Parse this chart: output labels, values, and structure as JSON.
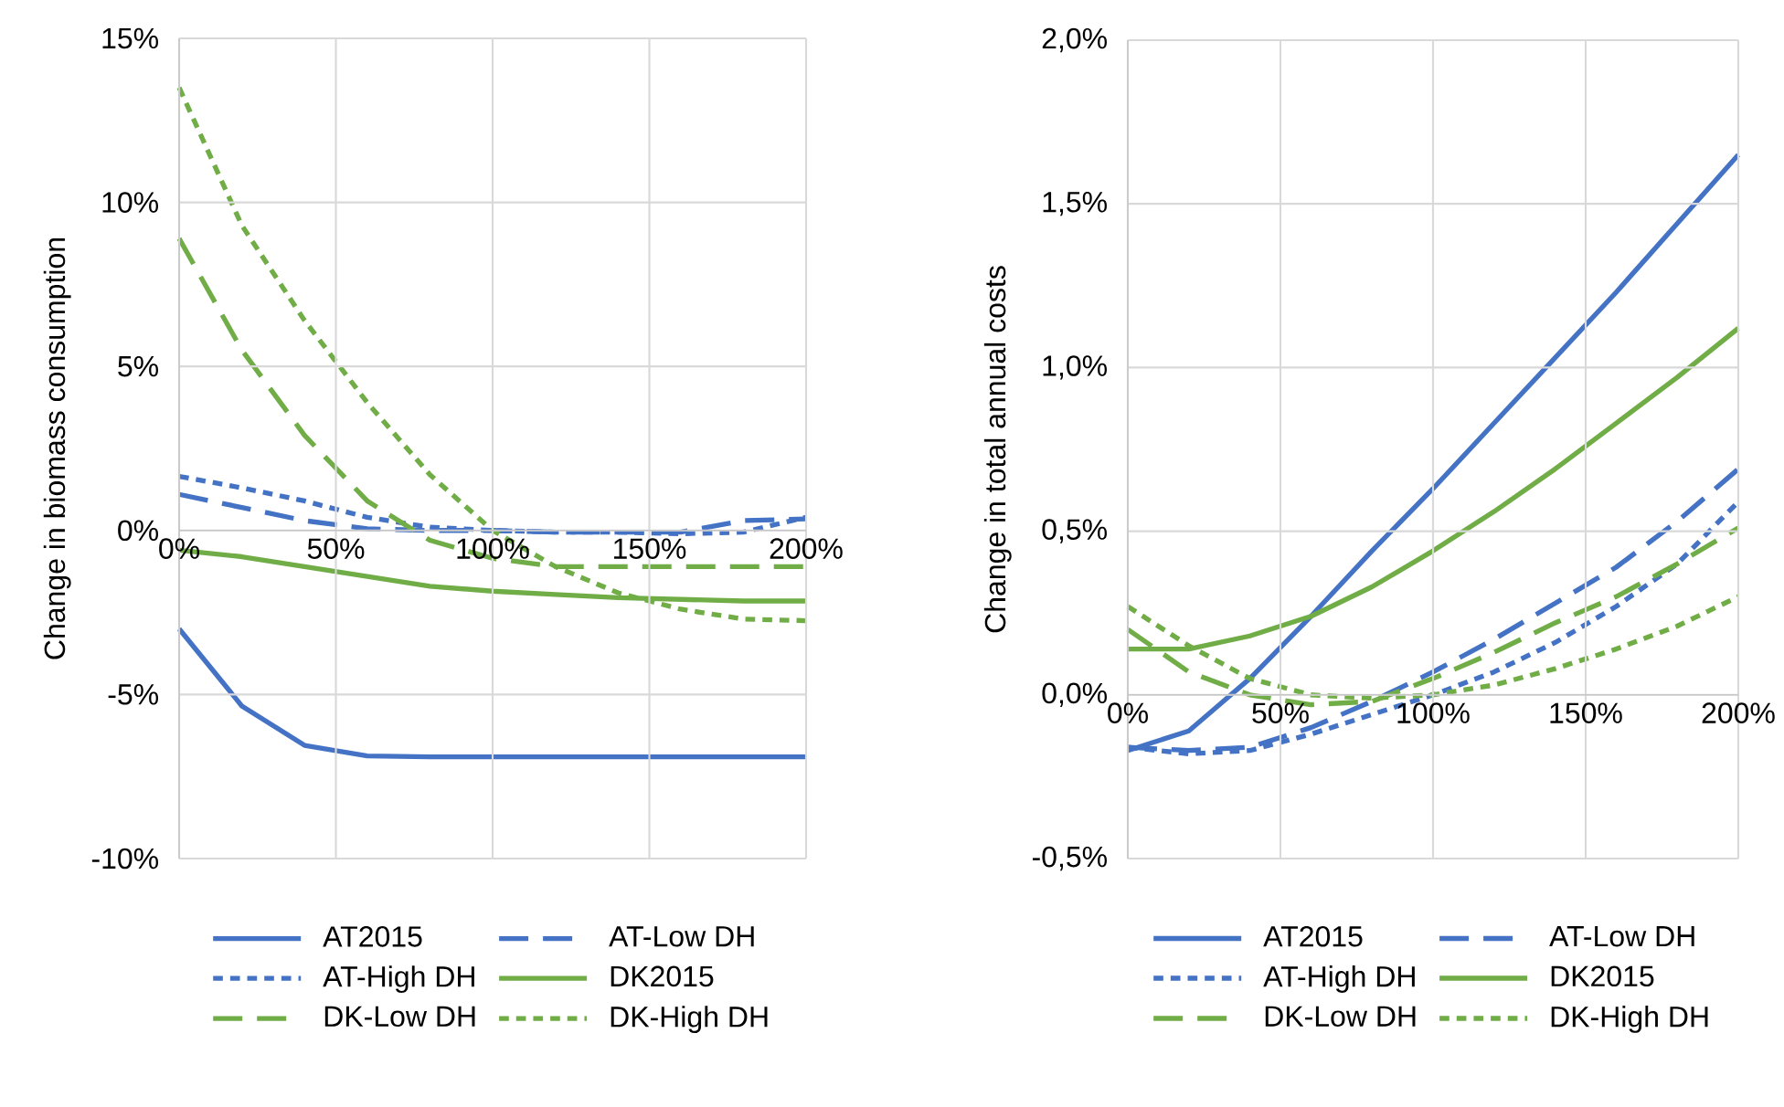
{
  "chart_data": [
    {
      "type": "line",
      "ylabel": "Change in biomass consumption",
      "x": [
        0,
        20,
        40,
        60,
        80,
        100,
        120,
        140,
        160,
        180,
        200
      ],
      "xlim": [
        0,
        200
      ],
      "xticks": [
        {
          "value": 0,
          "label": "0%"
        },
        {
          "value": 50,
          "label": "50%"
        },
        {
          "value": 100,
          "label": "100%"
        },
        {
          "value": 150,
          "label": "150%"
        },
        {
          "value": 200,
          "label": "200%"
        }
      ],
      "ylim": [
        -10,
        15
      ],
      "yticks": [
        {
          "value": -10,
          "label": "-10%"
        },
        {
          "value": -5,
          "label": "-5%"
        },
        {
          "value": 0,
          "label": "0%"
        },
        {
          "value": 5,
          "label": "5%"
        },
        {
          "value": 10,
          "label": "10%"
        },
        {
          "value": 15,
          "label": "15%"
        }
      ],
      "grid": true,
      "legend": "bottom",
      "series": [
        {
          "name": "AT2015",
          "color": "#4472c4",
          "line_style": "solid",
          "values": [
            -3.0,
            -5.35,
            -6.55,
            -6.87,
            -6.9,
            -6.9,
            -6.9,
            -6.9,
            -6.9,
            -6.9,
            -6.9
          ]
        },
        {
          "name": "AT-Low DH",
          "color": "#4472c4",
          "line_style": "dashed",
          "values": [
            1.1,
            0.7,
            0.3,
            0.05,
            0.0,
            0.0,
            -0.05,
            -0.05,
            -0.05,
            0.3,
            0.35
          ]
        },
        {
          "name": "AT-High DH",
          "color": "#4472c4",
          "line_style": "dotted",
          "values": [
            1.65,
            1.3,
            0.9,
            0.4,
            0.1,
            0.0,
            -0.05,
            -0.05,
            -0.1,
            -0.05,
            0.4
          ]
        },
        {
          "name": "DK2015",
          "color": "#70ad47",
          "line_style": "solid",
          "values": [
            -0.6,
            -0.8,
            -1.1,
            -1.4,
            -1.7,
            -1.85,
            -1.95,
            -2.05,
            -2.1,
            -2.15,
            -2.15
          ]
        },
        {
          "name": "DK-Low DH",
          "color": "#70ad47",
          "line_style": "dashed",
          "values": [
            8.9,
            5.5,
            2.9,
            0.9,
            -0.3,
            -0.85,
            -1.1,
            -1.1,
            -1.1,
            -1.1,
            -1.1
          ]
        },
        {
          "name": "DK-High DH",
          "color": "#70ad47",
          "line_style": "dotted",
          "values": [
            13.5,
            9.3,
            6.4,
            3.9,
            1.7,
            0.0,
            -1.1,
            -1.9,
            -2.4,
            -2.7,
            -2.75
          ]
        }
      ]
    },
    {
      "type": "line",
      "ylabel": "Change in total annual costs",
      "x": [
        0,
        20,
        40,
        60,
        80,
        100,
        120,
        140,
        160,
        180,
        200
      ],
      "xlim": [
        0,
        200
      ],
      "xticks": [
        {
          "value": 0,
          "label": "0%"
        },
        {
          "value": 50,
          "label": "50%"
        },
        {
          "value": 100,
          "label": "100%"
        },
        {
          "value": 150,
          "label": "150%"
        },
        {
          "value": 200,
          "label": "200%"
        }
      ],
      "ylim": [
        -0.5,
        2.0
      ],
      "yticks": [
        {
          "value": -0.5,
          "label": "-0,5%"
        },
        {
          "value": 0,
          "label": "0,0%"
        },
        {
          "value": 0.5,
          "label": "0,5%"
        },
        {
          "value": 1.0,
          "label": "1,0%"
        },
        {
          "value": 1.5,
          "label": "1,5%"
        },
        {
          "value": 2.0,
          "label": "2,0%"
        }
      ],
      "grid": true,
      "legend": "bottom",
      "series": [
        {
          "name": "AT2015",
          "color": "#4472c4",
          "line_style": "solid",
          "values": [
            -0.17,
            -0.11,
            0.05,
            0.24,
            0.44,
            0.63,
            0.83,
            1.03,
            1.23,
            1.44,
            1.65
          ]
        },
        {
          "name": "AT-Low DH",
          "color": "#4472c4",
          "line_style": "dashed",
          "values": [
            -0.16,
            -0.17,
            -0.16,
            -0.1,
            -0.02,
            0.07,
            0.17,
            0.28,
            0.39,
            0.53,
            0.69
          ]
        },
        {
          "name": "AT-High DH",
          "color": "#4472c4",
          "line_style": "dotted",
          "values": [
            -0.16,
            -0.18,
            -0.17,
            -0.12,
            -0.06,
            0.0,
            0.07,
            0.16,
            0.27,
            0.4,
            0.59
          ]
        },
        {
          "name": "DK2015",
          "color": "#70ad47",
          "line_style": "solid",
          "values": [
            0.14,
            0.14,
            0.18,
            0.24,
            0.33,
            0.44,
            0.56,
            0.69,
            0.83,
            0.97,
            1.12
          ]
        },
        {
          "name": "DK-Low DH",
          "color": "#70ad47",
          "line_style": "dashed",
          "values": [
            0.2,
            0.07,
            0.0,
            -0.03,
            -0.02,
            0.05,
            0.13,
            0.22,
            0.3,
            0.4,
            0.51
          ]
        },
        {
          "name": "DK-High DH",
          "color": "#70ad47",
          "line_style": "dotted",
          "values": [
            0.27,
            0.15,
            0.05,
            0.0,
            -0.01,
            0.0,
            0.03,
            0.08,
            0.14,
            0.21,
            0.3
          ]
        }
      ]
    }
  ]
}
